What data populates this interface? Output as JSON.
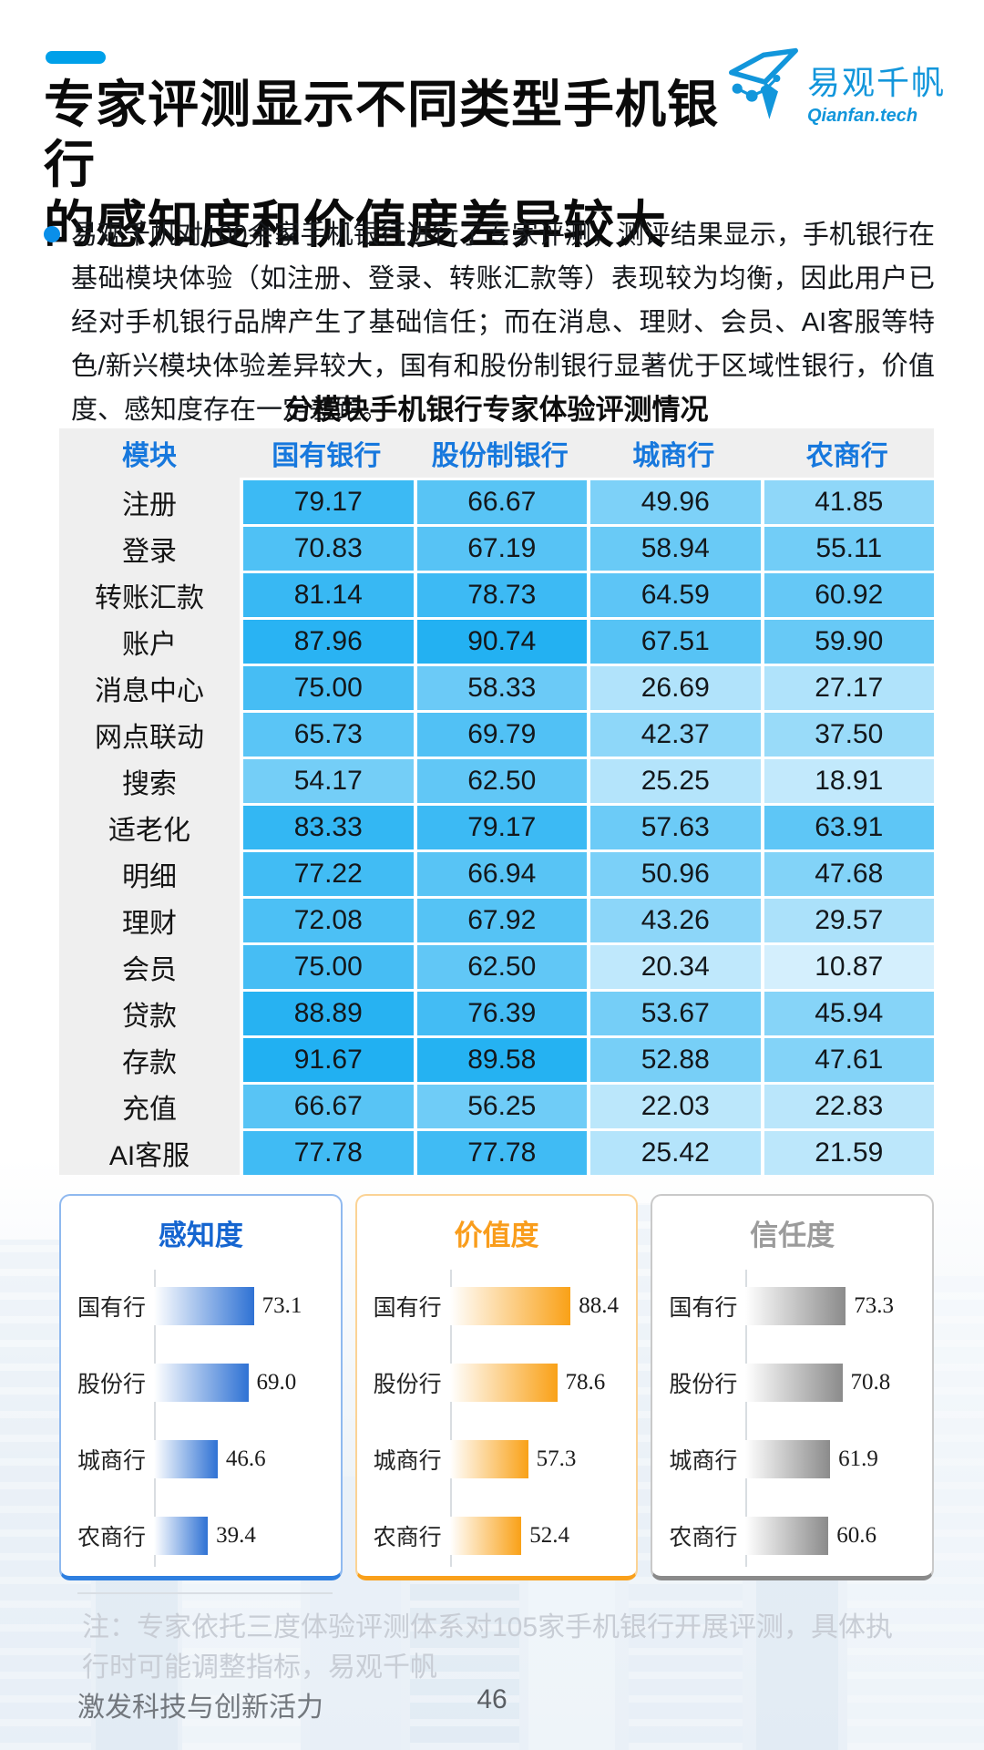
{
  "header": {
    "title_line1": "专家评测显示不同类型手机银行",
    "title_line2": "的感知度和价值度差异较大",
    "logo_text": "易观千帆",
    "logo_subtext": "Qianfan.tech"
  },
  "intro": {
    "text": "易观千帆对100余家手机银行进行了专家评测，测评结果显示，手机银行在基础模块体验（如注册、登录、转账汇款等）表现较为均衡，因此用户已经对手机银行品牌产生了基础信任；而在消息、理财、会员、AI客服等特色/新兴模块体验差异较大，国有和股份制银行显著优于区域性银行，价值度、感知度存在一定差距。"
  },
  "chart_data": [
    {
      "type": "heatmap",
      "title": "分模块手机银行专家体验评测情况",
      "columns": [
        "模块",
        "国有银行",
        "股份制银行",
        "城商行",
        "农商行"
      ],
      "rows": [
        {
          "label": "注册",
          "values": [
            79.17,
            66.67,
            49.96,
            41.85
          ]
        },
        {
          "label": "登录",
          "values": [
            70.83,
            67.19,
            58.94,
            55.11
          ]
        },
        {
          "label": "转账汇款",
          "values": [
            81.14,
            78.73,
            64.59,
            60.92
          ]
        },
        {
          "label": "账户",
          "values": [
            87.96,
            90.74,
            67.51,
            59.9
          ]
        },
        {
          "label": "消息中心",
          "values": [
            75.0,
            58.33,
            26.69,
            27.17
          ]
        },
        {
          "label": "网点联动",
          "values": [
            65.73,
            69.79,
            42.37,
            37.5
          ]
        },
        {
          "label": "搜索",
          "values": [
            54.17,
            62.5,
            25.25,
            18.91
          ]
        },
        {
          "label": "适老化",
          "values": [
            83.33,
            79.17,
            57.63,
            63.91
          ]
        },
        {
          "label": "明细",
          "values": [
            77.22,
            66.94,
            50.96,
            47.68
          ]
        },
        {
          "label": "理财",
          "values": [
            72.08,
            67.92,
            43.26,
            29.57
          ]
        },
        {
          "label": "会员",
          "values": [
            75.0,
            62.5,
            20.34,
            10.87
          ]
        },
        {
          "label": "贷款",
          "values": [
            88.89,
            76.39,
            53.67,
            45.94
          ]
        },
        {
          "label": "存款",
          "values": [
            91.67,
            89.58,
            52.88,
            47.61
          ]
        },
        {
          "label": "充值",
          "values": [
            66.67,
            56.25,
            22.03,
            22.83
          ]
        },
        {
          "label": "AI客服",
          "values": [
            77.78,
            77.78,
            25.42,
            21.59
          ]
        }
      ],
      "value_format": "2dp",
      "color_scale": {
        "min_value": 10,
        "max_value": 92,
        "min_color": "#d6f0fd",
        "max_color": "#20b0f2"
      },
      "header_text_color": "#1778dd"
    },
    {
      "type": "bar",
      "title": "感知度",
      "categories": [
        "国有行",
        "股份行",
        "城商行",
        "农商行"
      ],
      "values": [
        73.1,
        69.0,
        46.6,
        39.4
      ],
      "xlim": [
        0,
        100
      ],
      "title_color": "#1565d0",
      "bar_color": "#2f72d4",
      "border_light": "#8fb9ef",
      "border_strong": "#2e7fe0",
      "legend_position": "none"
    },
    {
      "type": "bar",
      "title": "价值度",
      "categories": [
        "国有行",
        "股份行",
        "城商行",
        "农商行"
      ],
      "values": [
        88.4,
        78.6,
        57.3,
        52.4
      ],
      "xlim": [
        0,
        100
      ],
      "title_color": "#f99d1c",
      "bar_color": "#f9a117",
      "border_light": "#fbd395",
      "border_strong": "#f9a01b",
      "legend_position": "none"
    },
    {
      "type": "bar",
      "title": "信任度",
      "categories": [
        "国有行",
        "股份行",
        "城商行",
        "农商行"
      ],
      "values": [
        73.3,
        70.8,
        61.9,
        60.6
      ],
      "xlim": [
        0,
        100
      ],
      "title_color": "#9b9b9b",
      "bar_color": "#8b8b8b",
      "border_light": "#c9c9c9",
      "border_strong": "#8a8a8a",
      "legend_position": "none"
    }
  ],
  "note": {
    "text": "注：专家依托三度体验评测体系对105家手机银行开展评测，具体执行时可能调整指标，易观千帆"
  },
  "footer": {
    "slogan": "激发科技与创新活力",
    "page_number": "46"
  }
}
